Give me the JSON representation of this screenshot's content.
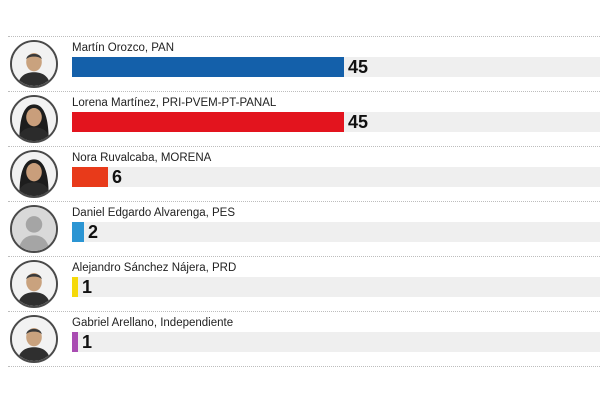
{
  "chart_data": {
    "type": "bar",
    "orientation": "horizontal",
    "categories": [
      "Martín Orozco, PAN",
      "Lorena Martínez, PRI-PVEM-PT-PANAL",
      "Nora Ruvalcaba, MORENA",
      "Daniel Edgardo Alvarenga, PES",
      "Alejandro Sánchez Nájera, PRD",
      "Gabriel Arellano, Independiente"
    ],
    "values": [
      45,
      45,
      6,
      2,
      1,
      1
    ],
    "value_labels": [
      "45",
      "45",
      "6",
      "2",
      "1",
      "1"
    ],
    "colors": [
      "#1460AA",
      "#E3141E",
      "#E83A1A",
      "#2B95D3",
      "#F5D90A",
      "#A94CB2"
    ],
    "avatar_icons": [
      "man-portrait-icon",
      "woman-portrait-icon",
      "woman-portrait-icon",
      "generic-person-icon",
      "man-portrait-icon",
      "man-portrait-icon"
    ],
    "xlim": [
      0,
      85
    ],
    "grid": false,
    "legend": "none"
  }
}
